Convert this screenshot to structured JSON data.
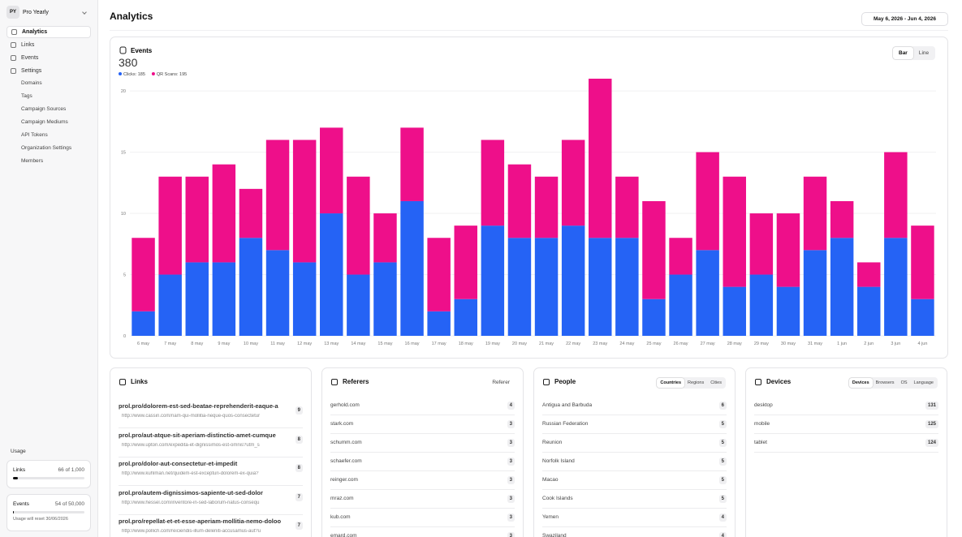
{
  "sidebar": {
    "workspace": {
      "initials": "PY",
      "name": "Pro Yearly"
    },
    "nav": [
      "Analytics",
      "Links",
      "Events",
      "Settings"
    ],
    "settings_items": [
      "Domains",
      "Tags",
      "Campaign Sources",
      "Campaign Mediums",
      "API Tokens",
      "Organization Settings",
      "Members"
    ],
    "usage": {
      "title": "Usage",
      "links": {
        "label": "Links",
        "value": "66 of 1,000"
      },
      "events": {
        "label": "Events",
        "value": "54 of 50,000",
        "note": "Usage will reset 30/06/2026"
      }
    }
  },
  "header": {
    "title": "Analytics",
    "date_range": "May 6, 2026 - Jun 4, 2026"
  },
  "chart_toggle": [
    "Bar",
    "Line"
  ],
  "chart_data": {
    "type": "stacked_bar",
    "title": "Events",
    "total": 380,
    "categories": [
      "6 may",
      "7 may",
      "8 may",
      "9 may",
      "10 may",
      "11 may",
      "12 may",
      "13 may",
      "14 may",
      "15 may",
      "16 may",
      "17 may",
      "18 may",
      "19 may",
      "20 may",
      "21 may",
      "22 may",
      "23 may",
      "24 may",
      "25 may",
      "26 may",
      "27 may",
      "28 may",
      "29 may",
      "30 may",
      "31 may",
      "1 jun",
      "2 jun",
      "3 jun",
      "4 jun"
    ],
    "series": [
      {
        "name": "Clicks: 185",
        "color": "#2563f5",
        "values": [
          2,
          5,
          6,
          6,
          8,
          7,
          6,
          10,
          5,
          6,
          11,
          2,
          3,
          9,
          8,
          8,
          9,
          8,
          8,
          3,
          5,
          7,
          4,
          5,
          4,
          7,
          8,
          4,
          8,
          3
        ]
      },
      {
        "name": "QR Scans: 195",
        "color": "#ee0f8a",
        "values": [
          6,
          8,
          7,
          8,
          4,
          9,
          10,
          7,
          8,
          4,
          6,
          6,
          6,
          7,
          6,
          5,
          7,
          13,
          5,
          8,
          3,
          8,
          9,
          5,
          6,
          6,
          3,
          2,
          7,
          6
        ]
      }
    ],
    "ylim": [
      0,
      21
    ],
    "yticks": [
      0,
      5,
      10,
      15,
      20
    ],
    "grid": true
  },
  "links": {
    "title": "Links",
    "items": [
      {
        "url": "prol.pro/dolorem-est-sed-beatae-reprehenderit-eaque-a",
        "destination": "http://www.cassin.com/nam-qui-mollitia-neque-quos-consectetur",
        "count": 9
      },
      {
        "url": "prol.pro/aut-atque-sit-aperiam-distinctio-amet-cumque",
        "destination": "http://www.upton.com/expedita-et-dignissimos-est-omnis?utm_s",
        "count": 8
      },
      {
        "url": "prol.pro/dolor-aut-consectetur-et-impedit",
        "destination": "http://www.kuhlman.net/quidem-est-excepturi-dolorem-ex-quia?",
        "count": 8
      },
      {
        "url": "prol.pro/autem-dignissimos-sapiente-ut-sed-dolor",
        "destination": "http://www.hessel.com/inventore-in-sed-laborum-natus-consequ",
        "count": 7
      },
      {
        "url": "prol.pro/repellat-et-et-esse-aperiam-mollitia-nemo-doloo",
        "destination": "http://www.pollich.com/reiciendis-illum-deleniti-accusamus-aut?u",
        "count": 7
      }
    ]
  },
  "referers": {
    "title": "Referers",
    "dropdown": "Referer",
    "rows": [
      {
        "name": "gerhold.com",
        "count": 4
      },
      {
        "name": "stark.com",
        "count": 3
      },
      {
        "name": "schumm.com",
        "count": 3
      },
      {
        "name": "schaefer.com",
        "count": 3
      },
      {
        "name": "reinger.com",
        "count": 3
      },
      {
        "name": "mraz.com",
        "count": 3
      },
      {
        "name": "kub.com",
        "count": 3
      },
      {
        "name": "emard.com",
        "count": 3
      }
    ]
  },
  "people": {
    "title": "People",
    "tabs": [
      "Countries",
      "Regions",
      "Cities"
    ],
    "rows": [
      {
        "name": "Antigua and Barbuda",
        "count": 6
      },
      {
        "name": "Russian Federation",
        "count": 5
      },
      {
        "name": "Reunion",
        "count": 5
      },
      {
        "name": "Norfolk Island",
        "count": 5
      },
      {
        "name": "Macao",
        "count": 5
      },
      {
        "name": "Cook Islands",
        "count": 5
      },
      {
        "name": "Yemen",
        "count": 4
      },
      {
        "name": "Swaziland",
        "count": 4
      }
    ]
  },
  "devices": {
    "title": "Devices",
    "tabs": [
      "Devices",
      "Browsers",
      "OS",
      "Language"
    ],
    "rows": [
      {
        "name": "desktop",
        "count": 131
      },
      {
        "name": "mobile",
        "count": 125
      },
      {
        "name": "tablet",
        "count": 124
      }
    ]
  }
}
